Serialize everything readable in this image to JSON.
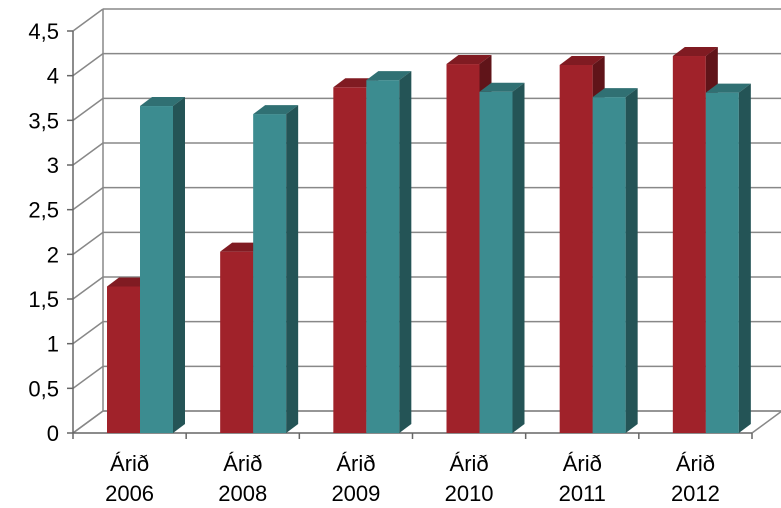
{
  "chart_data": {
    "type": "bar",
    "title": "",
    "xlabel": "",
    "ylabel": "",
    "categories": [
      {
        "line1": "Árið",
        "line2": "2006"
      },
      {
        "line1": "Árið",
        "line2": "2008"
      },
      {
        "line1": "Árið",
        "line2": "2009"
      },
      {
        "line1": "Árið",
        "line2": "2010"
      },
      {
        "line1": "Árið",
        "line2": "2011"
      },
      {
        "line1": "Árið",
        "line2": "2012"
      }
    ],
    "series": [
      {
        "color": "#a0222a",
        "values": [
          1.64,
          2.03,
          3.87,
          4.13,
          4.12,
          4.22
        ]
      },
      {
        "color": "#3c8c90",
        "values": [
          3.66,
          3.57,
          3.95,
          3.82,
          3.76,
          3.81
        ]
      }
    ],
    "ylim": [
      0,
      4.5
    ],
    "yticks": [
      "0",
      "0,5",
      "1",
      "1,5",
      "2",
      "2,5",
      "3",
      "3,5",
      "4",
      "4,5"
    ],
    "grid": true,
    "style": "3d-clustered-columns"
  }
}
